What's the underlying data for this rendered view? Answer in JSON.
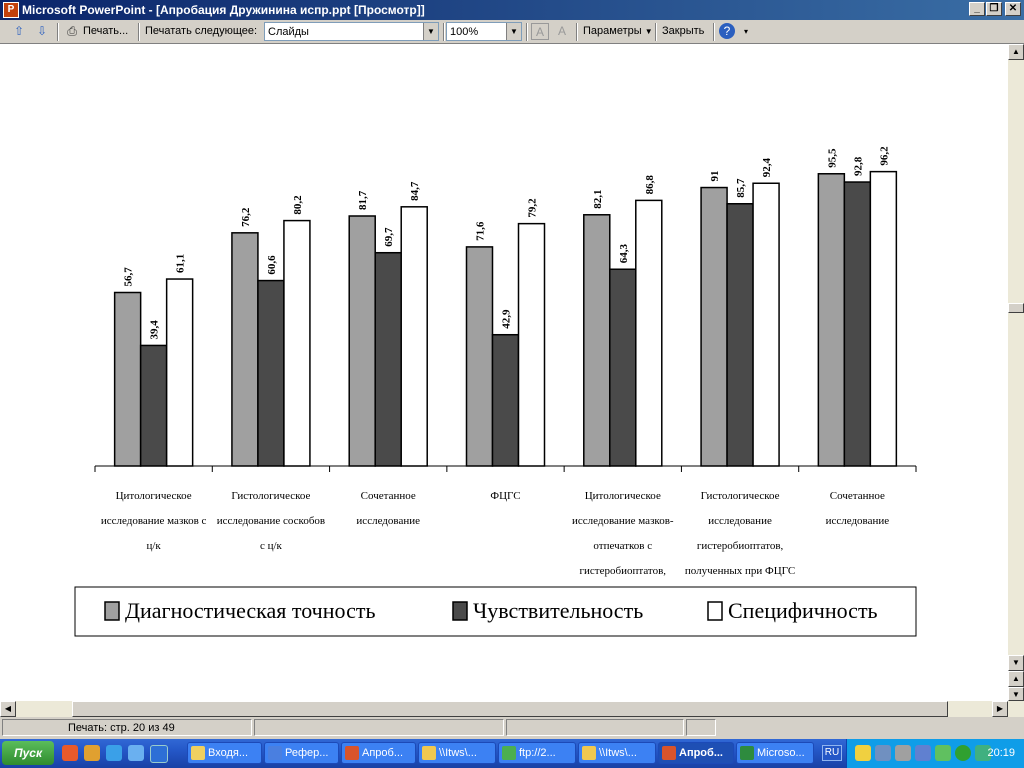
{
  "window": {
    "title": "Microsoft PowerPoint - [Апробация Дружинина испр.ppt [Просмотр]]",
    "app_icon": "P"
  },
  "toolbar": {
    "print_label": "Печать...",
    "print_what_label": "Печатать следующее:",
    "print_what_value": "Слайды",
    "zoom_value": "100%",
    "options_label": "Параметры",
    "close_label": "Закрыть"
  },
  "status": {
    "page_text": "Печать: стр. 20 из 49"
  },
  "chart_data": {
    "type": "bar",
    "categories": [
      [
        "Цитологическое",
        "исследование мазков с",
        "ц/к"
      ],
      [
        "Гистологическое",
        "исследование соскобов",
        "с ц/к"
      ],
      [
        "Сочетанное",
        "исследование"
      ],
      [
        "ФЦГС"
      ],
      [
        "Цитологическое",
        "исследование мазков-",
        "отпечатков с",
        "гистеробиоптатов,"
      ],
      [
        "Гистологическое",
        "исследование",
        "гистеробиоптатов,",
        "полученных при ФЦГС"
      ],
      [
        "Сочетанное",
        "исследование"
      ]
    ],
    "series": [
      {
        "name": "Диагностическая точность",
        "color": "#a0a0a0",
        "values": [
          56.7,
          76.2,
          81.7,
          71.6,
          82.1,
          91,
          95.5
        ],
        "labels": [
          "56,7",
          "76,2",
          "81,7",
          "71,6",
          "82,1",
          "91",
          "95,5"
        ]
      },
      {
        "name": "Чувствительность",
        "color": "#4a4a4a",
        "values": [
          39.4,
          60.6,
          69.7,
          42.9,
          64.3,
          85.7,
          92.8
        ],
        "labels": [
          "39,4",
          "60,6",
          "69,7",
          "42,9",
          "64,3",
          "85,7",
          "92,8"
        ]
      },
      {
        "name": "Специфичность",
        "color": "#ffffff",
        "values": [
          61.1,
          80.2,
          84.7,
          79.2,
          86.8,
          92.4,
          96.2
        ],
        "labels": [
          "61,1",
          "80,2",
          "84,7",
          "79,2",
          "86,8",
          "92,4",
          "96,2"
        ]
      }
    ],
    "ylim": [
      0,
      100
    ],
    "legend_position": "bottom",
    "grid": false,
    "title": "",
    "xlabel": "",
    "ylabel": ""
  },
  "taskbar": {
    "start_label": "Пуск",
    "tasks": [
      "Входя...",
      "Рефер...",
      "Апроб...",
      "\\\\Itws\\...",
      "ftp://2...",
      "\\\\Itws\\...",
      "Апроб...",
      "Microso..."
    ],
    "lang": "RU",
    "clock": "20:19"
  }
}
